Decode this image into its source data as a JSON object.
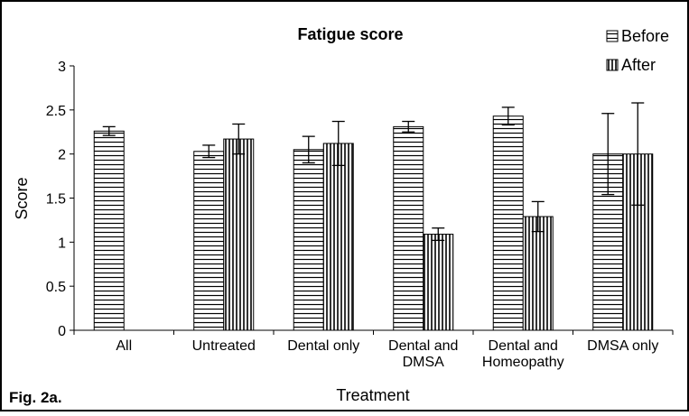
{
  "chart_data": {
    "type": "bar",
    "title": "Fatigue score",
    "x_label": "Treatment",
    "y_label": "Score",
    "caption": "Fig. 2a.",
    "categories": [
      "All",
      "Untreated",
      "Dental only",
      "Dental and DMSA",
      "Dental and Homeopathy",
      "DMSA only"
    ],
    "series": [
      {
        "name": "Before",
        "color": "#000000",
        "pattern": "horizontal",
        "values": [
          2.26,
          2.03,
          2.05,
          2.31,
          2.43,
          2.0
        ],
        "errors": [
          0.05,
          0.07,
          0.15,
          0.06,
          0.1,
          0.46
        ]
      },
      {
        "name": "After",
        "color": "#000000",
        "pattern": "vertical",
        "values": [
          null,
          2.17,
          2.12,
          1.09,
          1.29,
          2.0
        ],
        "errors": [
          null,
          0.17,
          0.25,
          0.07,
          0.17,
          0.58
        ]
      }
    ],
    "ylim": [
      0,
      3
    ],
    "yticks": [
      0,
      {
        "value": 0.5,
        "label": "0.5"
      },
      1,
      {
        "value": 1.5,
        "label": "1.5"
      },
      2,
      {
        "value": 2.5,
        "label": "2.5"
      },
      3
    ],
    "grid": false,
    "legend": "top-right"
  }
}
